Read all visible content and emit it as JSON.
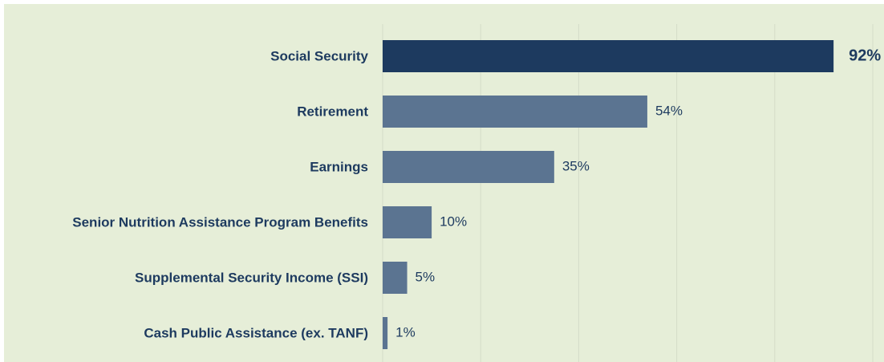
{
  "chart_data": {
    "type": "bar",
    "orientation": "horizontal",
    "categories": [
      "Social Security",
      "Retirement",
      "Earnings",
      "Senior Nutrition Assistance Program Benefits",
      "Supplemental Security Income (SSI)",
      "Cash Public Assistance (ex. TANF)"
    ],
    "values": [
      92,
      54,
      35,
      10,
      5,
      1
    ],
    "value_labels": [
      "92%",
      "54%",
      "35%",
      "10%",
      "5%",
      "1%"
    ],
    "colors": [
      "#1d3a5f",
      "#5b7491",
      "#5b7491",
      "#5b7491",
      "#5b7491",
      "#5b7491"
    ],
    "xlim": [
      0,
      100
    ],
    "xticks": [
      0,
      20,
      40,
      60,
      80,
      100
    ],
    "grid": true
  }
}
